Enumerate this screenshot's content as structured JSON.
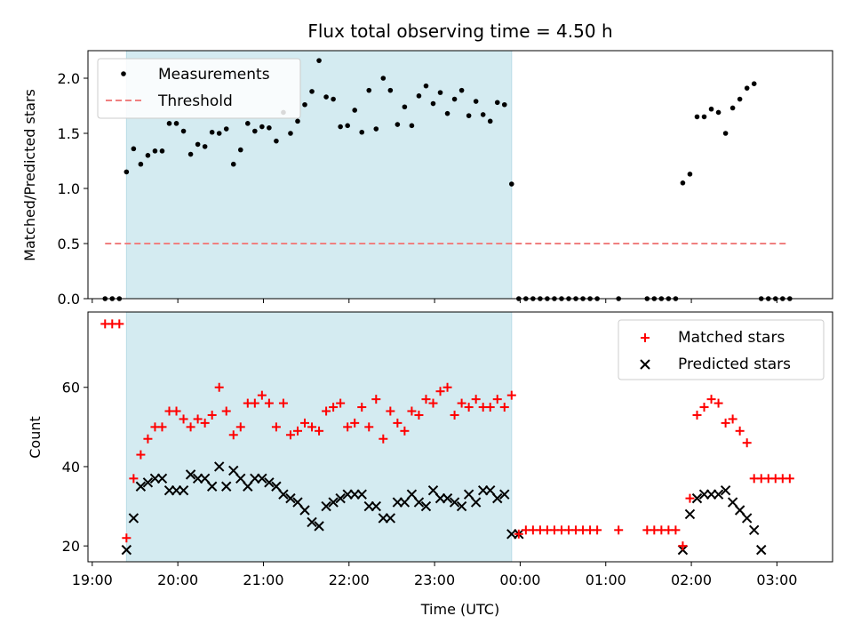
{
  "colors": {
    "shade": "#d4ebf1",
    "threshold": "#f08080",
    "measurement": "#000000",
    "matched": "#ff0000",
    "predicted": "#000000"
  },
  "chart_data": [
    {
      "type": "scatter",
      "title": "Flux total observing time = 4.50 h",
      "xlabel": "",
      "ylabel": "Matched/Predicted stars",
      "ylim": [
        0,
        2.25
      ],
      "yticks": [
        0.0,
        0.5,
        1.0,
        1.5,
        2.0
      ],
      "ytick_labels": [
        "0.0",
        "0.5",
        "1.0",
        "1.5",
        "2.0"
      ],
      "legend_position": "top-left",
      "shaded_interval": [
        "19:24",
        "23:54"
      ],
      "threshold": {
        "name": "Threshold",
        "value": 0.5,
        "x_range": [
          "19:09",
          "03:08"
        ]
      },
      "series": [
        {
          "name": "Measurements",
          "marker": "dot",
          "x": [
            "19:09",
            "19:14",
            "19:19",
            "19:24",
            "19:29",
            "19:34",
            "19:39",
            "19:44",
            "19:49",
            "19:54",
            "19:59",
            "20:04",
            "20:09",
            "20:14",
            "20:19",
            "20:24",
            "20:29",
            "20:34",
            "20:39",
            "20:44",
            "20:49",
            "20:54",
            "20:59",
            "21:04",
            "21:09",
            "21:14",
            "21:19",
            "21:24",
            "21:29",
            "21:34",
            "21:39",
            "21:44",
            "21:49",
            "21:54",
            "21:59",
            "22:04",
            "22:09",
            "22:14",
            "22:19",
            "22:24",
            "22:29",
            "22:34",
            "22:39",
            "22:44",
            "22:49",
            "22:54",
            "22:59",
            "23:04",
            "23:09",
            "23:14",
            "23:19",
            "23:24",
            "23:29",
            "23:34",
            "23:39",
            "23:44",
            "23:49",
            "23:54",
            "23:59",
            "00:04",
            "00:09",
            "00:14",
            "00:19",
            "00:24",
            "00:29",
            "00:34",
            "00:39",
            "00:44",
            "00:49",
            "00:54",
            "01:09",
            "01:29",
            "01:34",
            "01:39",
            "01:44",
            "01:49",
            "01:54",
            "01:59",
            "02:04",
            "02:09",
            "02:14",
            "02:19",
            "02:24",
            "02:29",
            "02:34",
            "02:39",
            "02:44",
            "02:49",
            "02:54",
            "02:59",
            "03:04",
            "03:09"
          ],
          "y": [
            0,
            0,
            0,
            1.15,
            1.36,
            1.22,
            1.3,
            1.34,
            1.34,
            1.59,
            1.59,
            1.52,
            1.31,
            1.4,
            1.38,
            1.51,
            1.5,
            1.54,
            1.22,
            1.35,
            1.59,
            1.52,
            1.56,
            1.55,
            1.43,
            1.69,
            1.5,
            1.61,
            1.76,
            1.88,
            2.16,
            1.83,
            1.81,
            1.56,
            1.57,
            1.71,
            1.51,
            1.89,
            1.54,
            2.0,
            1.89,
            1.58,
            1.74,
            1.57,
            1.84,
            1.93,
            1.77,
            1.87,
            1.68,
            1.81,
            1.89,
            1.66,
            1.79,
            1.67,
            1.61,
            1.78,
            1.76,
            1.04,
            0,
            0,
            0,
            0,
            0,
            0,
            0,
            0,
            0,
            0,
            0,
            0,
            0,
            0,
            0,
            0,
            0,
            0,
            1.05,
            1.13,
            1.65,
            1.65,
            1.72,
            1.69,
            1.5,
            1.73,
            1.81,
            1.91,
            1.95,
            0,
            0,
            0,
            0,
            0
          ]
        }
      ]
    },
    {
      "type": "scatter",
      "title": "",
      "xlabel": "Time (UTC)",
      "ylabel": "Count",
      "ylim": [
        16,
        79
      ],
      "yticks": [
        20,
        40,
        60
      ],
      "ytick_labels": [
        "20",
        "40",
        "60"
      ],
      "xlim": [
        "18:57",
        "03:39"
      ],
      "xticks": [
        "19:00",
        "20:00",
        "21:00",
        "22:00",
        "23:00",
        "00:00",
        "01:00",
        "02:00",
        "03:00"
      ],
      "xtick_labels": [
        "19:00",
        "20:00",
        "21:00",
        "22:00",
        "23:00",
        "00:00",
        "01:00",
        "02:00",
        "03:00"
      ],
      "legend_position": "top-right",
      "shaded_interval": [
        "19:24",
        "23:54"
      ],
      "series": [
        {
          "name": "Matched stars",
          "marker": "plus",
          "x": [
            "19:09",
            "19:14",
            "19:19",
            "19:24",
            "19:29",
            "19:34",
            "19:39",
            "19:44",
            "19:49",
            "19:54",
            "19:59",
            "20:04",
            "20:09",
            "20:14",
            "20:19",
            "20:24",
            "20:29",
            "20:34",
            "20:39",
            "20:44",
            "20:49",
            "20:54",
            "20:59",
            "21:04",
            "21:09",
            "21:14",
            "21:19",
            "21:24",
            "21:29",
            "21:34",
            "21:39",
            "21:44",
            "21:49",
            "21:54",
            "21:59",
            "22:04",
            "22:09",
            "22:14",
            "22:19",
            "22:24",
            "22:29",
            "22:34",
            "22:39",
            "22:44",
            "22:49",
            "22:54",
            "22:59",
            "23:04",
            "23:09",
            "23:14",
            "23:19",
            "23:24",
            "23:29",
            "23:34",
            "23:39",
            "23:44",
            "23:49",
            "23:54",
            "23:59",
            "00:04",
            "00:09",
            "00:14",
            "00:19",
            "00:24",
            "00:29",
            "00:34",
            "00:39",
            "00:44",
            "00:49",
            "00:54",
            "01:09",
            "01:29",
            "01:34",
            "01:39",
            "01:44",
            "01:49",
            "01:54",
            "01:59",
            "02:04",
            "02:09",
            "02:14",
            "02:19",
            "02:24",
            "02:29",
            "02:34",
            "02:39",
            "02:44",
            "02:49",
            "02:54",
            "02:59",
            "03:04",
            "03:09"
          ],
          "y": [
            76,
            76,
            76,
            22,
            37,
            43,
            47,
            50,
            50,
            54,
            54,
            52,
            50,
            52,
            51,
            53,
            60,
            54,
            48,
            50,
            56,
            56,
            58,
            56,
            50,
            56,
            48,
            49,
            51,
            50,
            49,
            54,
            55,
            56,
            50,
            51,
            55,
            50,
            57,
            47,
            54,
            51,
            49,
            54,
            53,
            57,
            56,
            59,
            60,
            53,
            56,
            55,
            57,
            55,
            55,
            57,
            55,
            58,
            23,
            24,
            24,
            24,
            24,
            24,
            24,
            24,
            24,
            24,
            24,
            24,
            24,
            24,
            24,
            24,
            24,
            24,
            20,
            32,
            53,
            55,
            57,
            56,
            51,
            52,
            49,
            46,
            37,
            37,
            37,
            37,
            37,
            37
          ]
        },
        {
          "name": "Predicted stars",
          "marker": "x",
          "x": [
            "19:24",
            "19:29",
            "19:34",
            "19:39",
            "19:44",
            "19:49",
            "19:54",
            "19:59",
            "20:04",
            "20:09",
            "20:14",
            "20:19",
            "20:24",
            "20:29",
            "20:34",
            "20:39",
            "20:44",
            "20:49",
            "20:54",
            "20:59",
            "21:04",
            "21:09",
            "21:14",
            "21:19",
            "21:24",
            "21:29",
            "21:34",
            "21:39",
            "21:44",
            "21:49",
            "21:54",
            "21:59",
            "22:04",
            "22:09",
            "22:14",
            "22:19",
            "22:24",
            "22:29",
            "22:34",
            "22:39",
            "22:44",
            "22:49",
            "22:54",
            "22:59",
            "23:04",
            "23:09",
            "23:14",
            "23:19",
            "23:24",
            "23:29",
            "23:34",
            "23:39",
            "23:44",
            "23:49",
            "23:54",
            "23:59",
            "01:54",
            "01:59",
            "02:04",
            "02:09",
            "02:14",
            "02:19",
            "02:24",
            "02:29",
            "02:34",
            "02:39",
            "02:44",
            "02:49"
          ],
          "y": [
            19,
            27,
            35,
            36,
            37,
            37,
            34,
            34,
            34,
            38,
            37,
            37,
            35,
            40,
            35,
            39,
            37,
            35,
            37,
            37,
            36,
            35,
            33,
            32,
            31,
            29,
            26,
            25,
            30,
            31,
            32,
            33,
            33,
            33,
            30,
            30,
            27,
            27,
            31,
            31,
            33,
            31,
            30,
            34,
            32,
            32,
            31,
            30,
            33,
            31,
            34,
            34,
            32,
            33,
            23,
            23,
            19,
            28,
            32,
            33,
            33,
            33,
            34,
            31,
            29,
            27,
            24,
            19
          ]
        }
      ]
    }
  ]
}
